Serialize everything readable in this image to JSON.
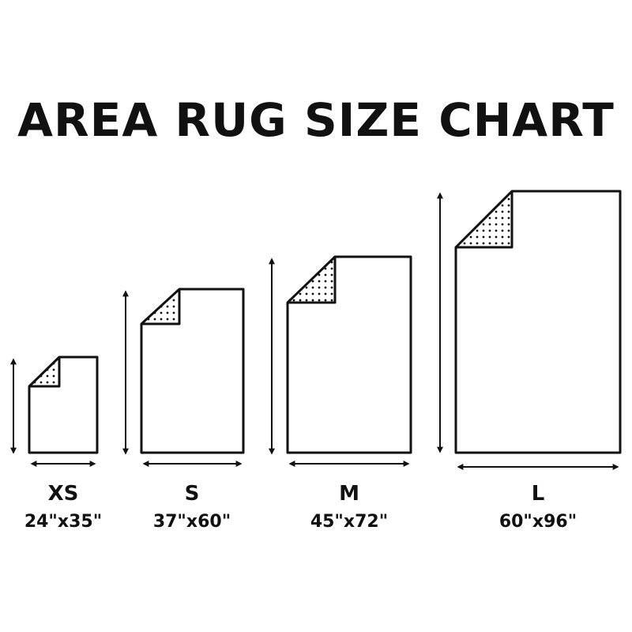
{
  "title": "AREA RUG SIZE CHART",
  "colors": {
    "line": "#111111",
    "background": "#ffffff"
  },
  "sizes": [
    {
      "label": "XS",
      "dimensions": "24\"x35\"",
      "width_in": 24,
      "length_in": 35
    },
    {
      "label": "S",
      "dimensions": "37\"x60\"",
      "width_in": 37,
      "length_in": 60
    },
    {
      "label": "M",
      "dimensions": "45\"x72\"",
      "width_in": 45,
      "length_in": 72
    },
    {
      "label": "L",
      "dimensions": "60\"x96\"",
      "width_in": 60,
      "length_in": 96
    }
  ]
}
